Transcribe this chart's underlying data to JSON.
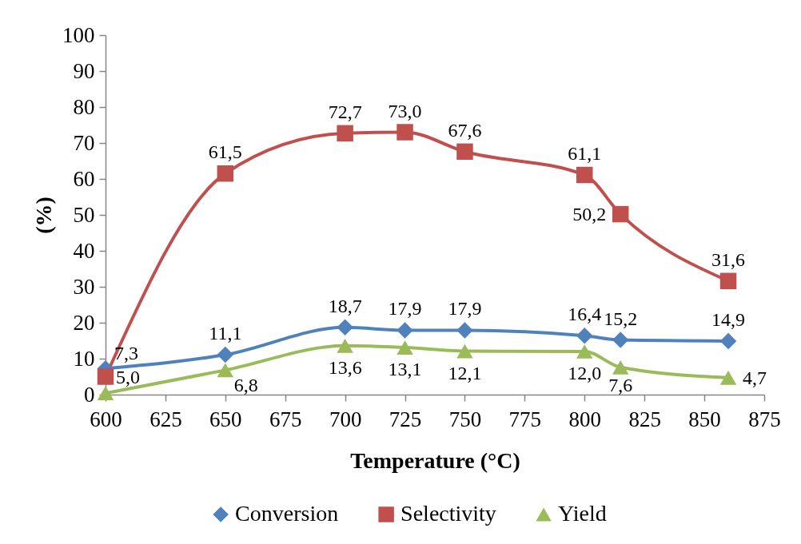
{
  "chart_data": {
    "type": "line",
    "xlabel": "Temperature (°C)",
    "ylabel": "(%)",
    "x": [
      600,
      650,
      700,
      725,
      750,
      800,
      815,
      860
    ],
    "xlim": [
      600,
      875
    ],
    "xticks": [
      600,
      625,
      650,
      675,
      700,
      725,
      750,
      775,
      800,
      825,
      850,
      875
    ],
    "ylim": [
      0,
      100
    ],
    "yticks": [
      0,
      10,
      20,
      30,
      40,
      50,
      60,
      70,
      80,
      90,
      100
    ],
    "legend": "bottom",
    "line_style": "solid",
    "series": [
      {
        "name": "Conversion",
        "color": "#4f81bd",
        "marker": "diamond",
        "values": [
          7.3,
          11.1,
          18.7,
          17.9,
          17.9,
          16.4,
          15.2,
          14.9
        ],
        "value_labels": [
          "7,3",
          "11,1",
          "18,7",
          "17,9",
          "17,9",
          "16,4",
          "15,2",
          "14,9"
        ]
      },
      {
        "name": "Selectivity",
        "color": "#c0504d",
        "marker": "square",
        "values": [
          5.0,
          61.5,
          72.7,
          73.0,
          67.6,
          61.1,
          50.2,
          31.6
        ],
        "value_labels": [
          "5,0",
          "61,5",
          "72,7",
          "73,0",
          "67,6",
          "61,1",
          "50,2",
          "31,6"
        ]
      },
      {
        "name": "Yield",
        "color": "#9bbb59",
        "marker": "triangle",
        "values": [
          0.4,
          6.8,
          13.6,
          13.1,
          12.1,
          12.0,
          7.6,
          4.7
        ],
        "value_labels": [
          null,
          "6,8",
          "13,6",
          "13,1",
          "12,1",
          "12,0",
          "7,6",
          "4,7"
        ]
      }
    ]
  }
}
